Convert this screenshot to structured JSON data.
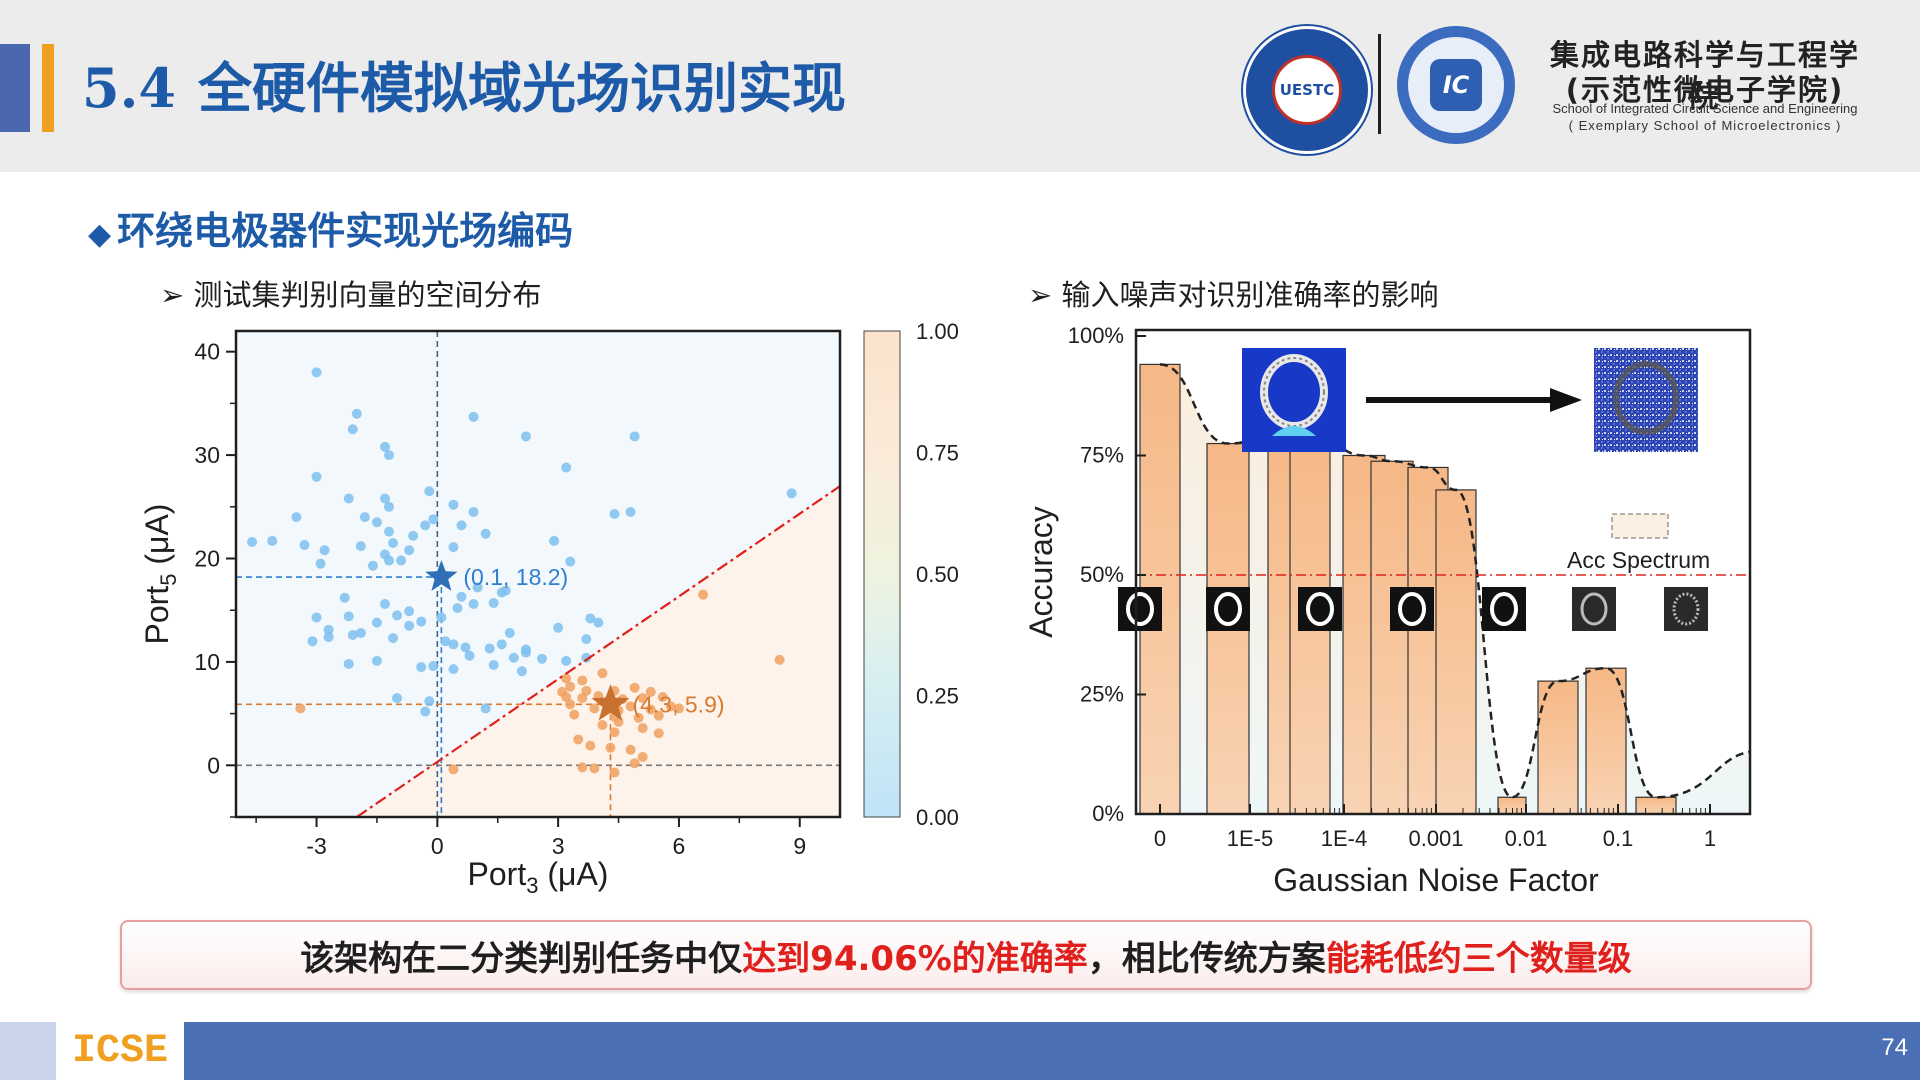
{
  "header": {
    "title_number": "5.4",
    "title": "全硬件模拟域光场识别实现",
    "logo_uestc_text": "UESTC",
    "logo_icse_text": "IC",
    "school_cn_line1": "集成电路科学与工程学院",
    "school_cn_line2": "(示范性微电子学院)",
    "school_en_line1": "School of Integrated Circuit Science and Engineering",
    "school_en_line2": "( Exemplary School of Microelectronics )"
  },
  "section": {
    "heading": "环绕电极器件实现光场编码",
    "left_subtitle": "测试集判别向量的空间分布",
    "right_subtitle": "输入噪声对识别准确率的影响"
  },
  "chart_data": [
    {
      "type": "scatter",
      "xlabel": "Port3 (μA)",
      "ylabel": "Port5 (μA)",
      "xlim": [
        -5,
        10
      ],
      "ylim": [
        -5,
        42
      ],
      "xticks": [
        "-3",
        "0",
        "3",
        "6",
        "9"
      ],
      "yticks": [
        "0",
        "10",
        "20",
        "30",
        "40"
      ],
      "colorbar": {
        "ticks": [
          "0.00",
          "0.25",
          "0.50",
          "0.75",
          "1.00"
        ]
      },
      "centroids": [
        {
          "label": "(0.1, 18.2)",
          "x": 0.1,
          "y": 18.2,
          "color": "#2f7fd0"
        },
        {
          "label": "(4.3, 5.9)",
          "x": 4.3,
          "y": 5.9,
          "color": "#d87a30"
        }
      ],
      "boundary": {
        "x": [
          -2,
          10
        ],
        "y": [
          -5,
          27
        ]
      },
      "series": [
        {
          "color": "#7cc0ef",
          "points": [
            [
              -3,
              38
            ],
            [
              -2,
              34
            ],
            [
              -2.1,
              32.5
            ],
            [
              -1.3,
              30.8
            ],
            [
              -1.2,
              30
            ],
            [
              0.9,
              33.7
            ],
            [
              2.2,
              31.8
            ],
            [
              4.9,
              31.8
            ],
            [
              3.2,
              28.8
            ],
            [
              -3,
              27.9
            ],
            [
              -2.2,
              25.8
            ],
            [
              -1.3,
              25.8
            ],
            [
              -1.2,
              25
            ],
            [
              -0.2,
              26.5
            ],
            [
              0.4,
              25.2
            ],
            [
              0.9,
              24.5
            ],
            [
              -3.5,
              24
            ],
            [
              -1.8,
              24
            ],
            [
              -1.5,
              23.5
            ],
            [
              -1.2,
              22.6
            ],
            [
              -0.6,
              22.2
            ],
            [
              -0.3,
              23.2
            ],
            [
              -0.1,
              23.8
            ],
            [
              0.6,
              23.2
            ],
            [
              1.2,
              22.4
            ],
            [
              -4.6,
              21.6
            ],
            [
              -4.1,
              21.7
            ],
            [
              -3.3,
              21.3
            ],
            [
              -2.8,
              20.8
            ],
            [
              -1.9,
              21.2
            ],
            [
              -1.1,
              21.5
            ],
            [
              -0.7,
              20.8
            ],
            [
              -1.3,
              20.4
            ],
            [
              -1.2,
              19.8
            ],
            [
              -2.9,
              19.5
            ],
            [
              -1.6,
              19.3
            ],
            [
              -0.9,
              19.8
            ],
            [
              0.4,
              21.1
            ],
            [
              2.9,
              21.7
            ],
            [
              3.3,
              19.7
            ],
            [
              4.4,
              24.3
            ],
            [
              4.8,
              24.5
            ],
            [
              8.8,
              26.3
            ],
            [
              1,
              17.2
            ],
            [
              1.6,
              16.7
            ],
            [
              1.7,
              16.9
            ],
            [
              0.6,
              16.3
            ],
            [
              0.9,
              15.6
            ],
            [
              0.5,
              15.2
            ],
            [
              1.4,
              15.7
            ],
            [
              -2.3,
              16.2
            ],
            [
              -1.3,
              15.6
            ],
            [
              -0.7,
              14.9
            ],
            [
              0.1,
              14.3
            ],
            [
              -0.4,
              13.9
            ],
            [
              -1,
              14.5
            ],
            [
              -3,
              14.3
            ],
            [
              -2.2,
              14.4
            ],
            [
              -1.5,
              13.8
            ],
            [
              -0.7,
              13.5
            ],
            [
              -1.9,
              12.8
            ],
            [
              -2.7,
              13.1
            ],
            [
              -2.1,
              12.6
            ],
            [
              -1.1,
              12.3
            ],
            [
              -3.1,
              12
            ],
            [
              -2.7,
              12.4
            ],
            [
              0.2,
              12
            ],
            [
              0.4,
              11.7
            ],
            [
              0.7,
              11.4
            ],
            [
              1.8,
              12.8
            ],
            [
              1.6,
              11.7
            ],
            [
              1.3,
              11.3
            ],
            [
              0.8,
              10.6
            ],
            [
              1.9,
              10.4
            ],
            [
              2.2,
              11.2
            ],
            [
              3,
              13.3
            ],
            [
              3.8,
              14.2
            ],
            [
              4,
              13.8
            ],
            [
              3.7,
              12.2
            ],
            [
              2.6,
              10.3
            ],
            [
              3.2,
              10.1
            ],
            [
              3.7,
              10.4
            ],
            [
              2.2,
              10.9
            ],
            [
              -1.5,
              10.1
            ],
            [
              -2.2,
              9.8
            ],
            [
              -0.4,
              9.5
            ],
            [
              -0.1,
              9.6
            ],
            [
              0.4,
              9.3
            ],
            [
              1.4,
              9.7
            ],
            [
              2.1,
              9.1
            ],
            [
              -1,
              6.5
            ],
            [
              -0.2,
              6.2
            ],
            [
              1.2,
              5.5
            ],
            [
              -0.3,
              5.2
            ]
          ]
        },
        {
          "color": "#f0a060",
          "points": [
            [
              6.6,
              16.5
            ],
            [
              8.5,
              10.2
            ],
            [
              3.2,
              8.4
            ],
            [
              4.1,
              8.9
            ],
            [
              3.6,
              8.2
            ],
            [
              3.3,
              7.6
            ],
            [
              3.1,
              7.1
            ],
            [
              3.7,
              7.2
            ],
            [
              4.4,
              7.2
            ],
            [
              4.9,
              7.5
            ],
            [
              5.3,
              7.1
            ],
            [
              3.2,
              6.6
            ],
            [
              3.6,
              6.5
            ],
            [
              4,
              6.7
            ],
            [
              4.6,
              6.4
            ],
            [
              5.1,
              6.5
            ],
            [
              5.6,
              6.6
            ],
            [
              3.3,
              5.9
            ],
            [
              3.9,
              5.5
            ],
            [
              4.5,
              5.3
            ],
            [
              4.8,
              5.7
            ],
            [
              5.3,
              5.4
            ],
            [
              5.8,
              5.7
            ],
            [
              6,
              5.5
            ],
            [
              3.4,
              4.9
            ],
            [
              4.4,
              4.7
            ],
            [
              4.5,
              4.2
            ],
            [
              5,
              4.6
            ],
            [
              5.5,
              4.8
            ],
            [
              4.1,
              3.9
            ],
            [
              4.4,
              3.2
            ],
            [
              5.1,
              3.6
            ],
            [
              5.5,
              3.1
            ],
            [
              3.5,
              2.5
            ],
            [
              3.8,
              1.9
            ],
            [
              4.3,
              1.7
            ],
            [
              4.8,
              1.5
            ],
            [
              5.1,
              0.8
            ],
            [
              4.9,
              0.2
            ],
            [
              3.6,
              -0.2
            ],
            [
              3.9,
              -0.3
            ],
            [
              4.4,
              -0.7
            ],
            [
              -3.4,
              5.5
            ],
            [
              0.4,
              -0.4
            ]
          ]
        }
      ]
    },
    {
      "type": "bar",
      "xlabel": "Gaussian Noise Factor",
      "ylabel": "Accuracy",
      "ylim": [
        0,
        1.0
      ],
      "yticks": [
        "0%",
        "25%",
        "50%",
        "75%",
        "100%"
      ],
      "xticks": [
        "0",
        "1E-5",
        "1E-4",
        "0.001",
        "0.01",
        "0.1",
        "1"
      ],
      "values": [
        0.9406,
        0.775,
        0.795,
        0.8,
        0.75,
        0.738,
        0.725,
        0.678,
        0.035,
        0.278,
        0.305,
        0.035
      ],
      "threshold": 0.5,
      "legend": "Acc Spectrum",
      "bar_color": "#f5be91",
      "threshold_color": "#e0201c"
    }
  ],
  "conclusion": {
    "text1": "该架构在二分类判别任务中仅",
    "highlight1": "达到94.06%的准确率",
    "text2": "，相比传统方案",
    "highlight2": "能耗低约三个数量级"
  },
  "footer": {
    "logo": "ICSE",
    "page_number": "74"
  }
}
